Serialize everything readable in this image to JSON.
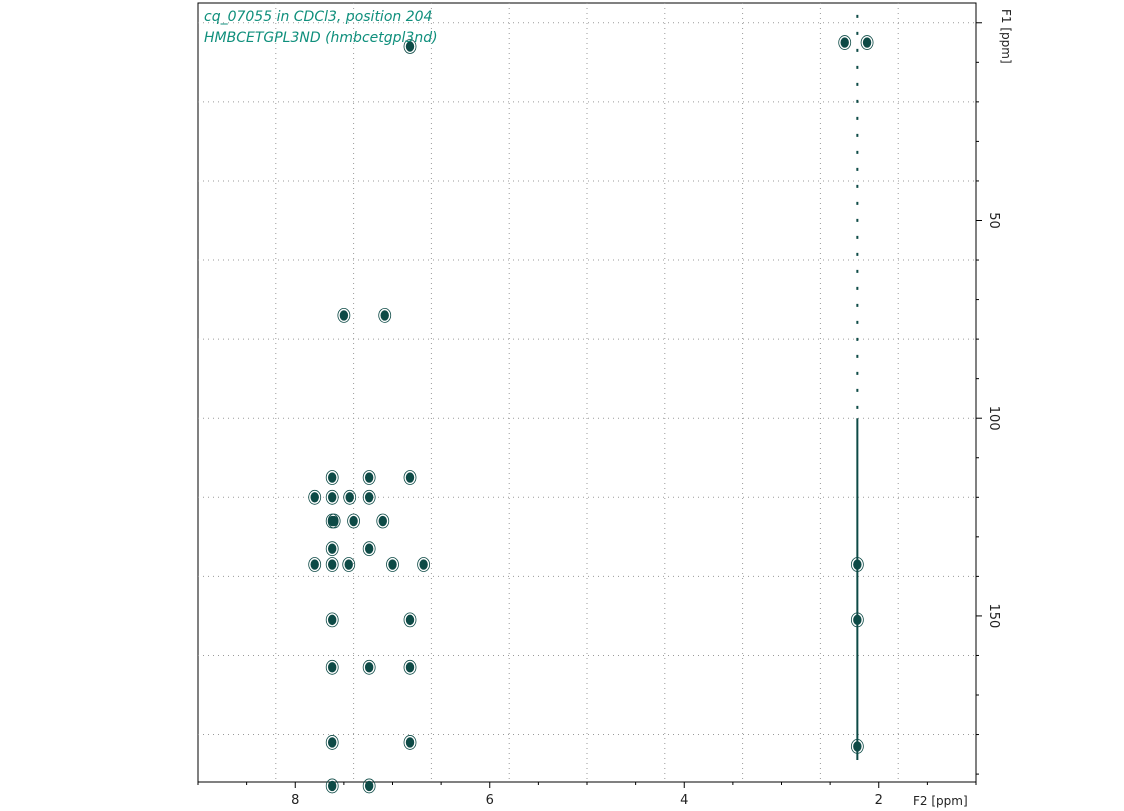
{
  "title": {
    "line1": "cq_07055 in CDCl3, position 204",
    "line2": "HMBCETGPL3ND (hmbcetgpl3nd)",
    "color": "#0f8f7c"
  },
  "colors": {
    "contour": "#0d4a46",
    "grid": "#9a9a9a",
    "frame": "#000000"
  },
  "chart_data": {
    "type": "scatter",
    "x_axis": {
      "label": "F2 [ppm]",
      "range": [
        9.0,
        1.0
      ],
      "reversed": true,
      "ticks": [
        8,
        6,
        4,
        2
      ]
    },
    "y_axis": {
      "label": "F1 [ppm]",
      "range": [
        -5,
        192
      ],
      "reversed": true,
      "ticks": [
        50,
        100,
        150
      ]
    },
    "grid": true,
    "series": [
      {
        "name": "",
        "points": [
          [
            7.62,
            115
          ],
          [
            7.24,
            115
          ],
          [
            6.82,
            115
          ],
          [
            7.8,
            120
          ],
          [
            7.62,
            120
          ],
          [
            7.44,
            120
          ],
          [
            7.24,
            120
          ],
          [
            7.62,
            126
          ],
          [
            7.6,
            126
          ],
          [
            7.4,
            126
          ],
          [
            7.1,
            126
          ],
          [
            7.62,
            133
          ],
          [
            7.24,
            133
          ],
          [
            7.8,
            137
          ],
          [
            7.62,
            137
          ],
          [
            7.45,
            137
          ],
          [
            7.0,
            137
          ],
          [
            6.68,
            137
          ],
          [
            7.62,
            151
          ],
          [
            6.82,
            151
          ],
          [
            7.62,
            163
          ],
          [
            7.24,
            163
          ],
          [
            6.82,
            163
          ],
          [
            7.62,
            182
          ],
          [
            6.82,
            182
          ],
          [
            7.62,
            193
          ],
          [
            7.24,
            193
          ],
          [
            7.5,
            74
          ],
          [
            7.08,
            74
          ],
          [
            6.82,
            6
          ],
          [
            2.35,
            5
          ],
          [
            2.12,
            5
          ],
          [
            2.22,
            137
          ],
          [
            2.22,
            151
          ],
          [
            2.22,
            183
          ]
        ]
      }
    ]
  }
}
